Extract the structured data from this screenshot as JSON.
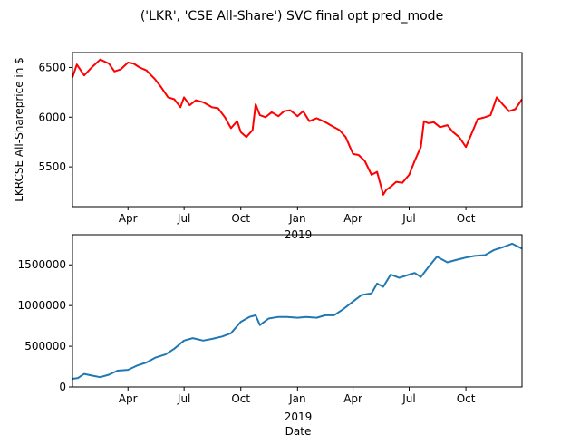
{
  "figure": {
    "title": "('LKR', 'CSE All-Share') SVC final opt pred_mode"
  },
  "chart_data": [
    {
      "type": "line",
      "title": "('LKR', 'CSE All-Share') SVC final opt pred_mode",
      "xlabel": "",
      "ylabel": "LKRCSE All-Shareprice in $",
      "x_range": [
        "2018-01-01",
        "2019-12-31"
      ],
      "ylim": [
        5100,
        6650
      ],
      "yticks": [
        5500,
        6000,
        6500
      ],
      "xticks": [
        {
          "date": "2018-04-01",
          "label": "Apr"
        },
        {
          "date": "2018-07-01",
          "label": "Jul"
        },
        {
          "date": "2018-10-01",
          "label": "Oct"
        },
        {
          "date": "2019-01-01",
          "label": "Jan"
        },
        {
          "date": "2019-04-01",
          "label": "Apr"
        },
        {
          "date": "2019-07-01",
          "label": "Jul"
        },
        {
          "date": "2019-10-01",
          "label": "Oct"
        }
      ],
      "year_label": "2019",
      "grid": false,
      "legend": "none",
      "color": "#ff0000",
      "series": [
        {
          "x": [
            "2018-01-01",
            "2018-01-08",
            "2018-01-20",
            "2018-02-01",
            "2018-02-15",
            "2018-03-01",
            "2018-03-10",
            "2018-03-20",
            "2018-04-01",
            "2018-04-10",
            "2018-04-20",
            "2018-05-01",
            "2018-05-15",
            "2018-05-25",
            "2018-06-05",
            "2018-06-15",
            "2018-06-25",
            "2018-07-01",
            "2018-07-10",
            "2018-07-20",
            "2018-08-01",
            "2018-08-15",
            "2018-08-25",
            "2018-09-05",
            "2018-09-15",
            "2018-09-25",
            "2018-10-01",
            "2018-10-10",
            "2018-10-20",
            "2018-10-25",
            "2018-11-01",
            "2018-11-10",
            "2018-11-20",
            "2018-12-01",
            "2018-12-10",
            "2018-12-20",
            "2019-01-01",
            "2019-01-10",
            "2019-01-20",
            "2019-02-01",
            "2019-02-15",
            "2019-03-01",
            "2019-03-10",
            "2019-03-20",
            "2019-04-01",
            "2019-04-10",
            "2019-04-20",
            "2019-05-01",
            "2019-05-10",
            "2019-05-20",
            "2019-05-25",
            "2019-06-01",
            "2019-06-10",
            "2019-06-20",
            "2019-07-01",
            "2019-07-10",
            "2019-07-20",
            "2019-07-25",
            "2019-08-01",
            "2019-08-10",
            "2019-08-20",
            "2019-09-01",
            "2019-09-10",
            "2019-09-20",
            "2019-10-01",
            "2019-10-10",
            "2019-10-20",
            "2019-11-01",
            "2019-11-10",
            "2019-11-20",
            "2019-12-01",
            "2019-12-10",
            "2019-12-20",
            "2019-12-31"
          ],
          "values": [
            6400,
            6530,
            6420,
            6500,
            6580,
            6540,
            6460,
            6480,
            6550,
            6540,
            6500,
            6470,
            6380,
            6300,
            6200,
            6180,
            6100,
            6200,
            6120,
            6170,
            6150,
            6100,
            6090,
            6000,
            5890,
            5960,
            5850,
            5800,
            5870,
            6130,
            6020,
            6000,
            6050,
            6010,
            6060,
            6070,
            6010,
            6060,
            5960,
            5990,
            5950,
            5900,
            5870,
            5800,
            5630,
            5620,
            5560,
            5420,
            5450,
            5220,
            5270,
            5300,
            5350,
            5340,
            5420,
            5560,
            5700,
            5960,
            5940,
            5950,
            5900,
            5920,
            5850,
            5800,
            5700,
            5830,
            5980,
            6000,
            6020,
            6200,
            6120,
            6060,
            6080,
            6180
          ]
        }
      ]
    },
    {
      "type": "line",
      "title": "",
      "xlabel": "Date",
      "ylabel": "",
      "x_range": [
        "2018-01-01",
        "2019-12-31"
      ],
      "ylim": [
        0,
        1870000
      ],
      "yticks": [
        0,
        500000,
        1000000,
        1500000
      ],
      "ytick_labels": [
        "0",
        "500000",
        "1000000",
        "1500000"
      ],
      "xticks": [
        {
          "date": "2018-04-01",
          "label": "Apr"
        },
        {
          "date": "2018-07-01",
          "label": "Jul"
        },
        {
          "date": "2018-10-01",
          "label": "Oct"
        },
        {
          "date": "2019-01-01",
          "label": "Jan"
        },
        {
          "date": "2019-04-01",
          "label": "Apr"
        },
        {
          "date": "2019-07-01",
          "label": "Jul"
        },
        {
          "date": "2019-10-01",
          "label": "Oct"
        }
      ],
      "year_label": "2019",
      "grid": false,
      "legend": "none",
      "color": "#1f77b4",
      "series": [
        {
          "x": [
            "2018-01-01",
            "2018-01-10",
            "2018-01-20",
            "2018-02-01",
            "2018-02-15",
            "2018-03-01",
            "2018-03-15",
            "2018-04-01",
            "2018-04-15",
            "2018-05-01",
            "2018-05-15",
            "2018-06-01",
            "2018-06-15",
            "2018-07-01",
            "2018-07-15",
            "2018-08-01",
            "2018-08-15",
            "2018-09-01",
            "2018-09-15",
            "2018-10-01",
            "2018-10-15",
            "2018-10-25",
            "2018-11-01",
            "2018-11-15",
            "2018-12-01",
            "2018-12-15",
            "2019-01-01",
            "2019-01-15",
            "2019-02-01",
            "2019-02-15",
            "2019-03-01",
            "2019-03-15",
            "2019-04-01",
            "2019-04-15",
            "2019-05-01",
            "2019-05-10",
            "2019-05-20",
            "2019-06-01",
            "2019-06-15",
            "2019-07-01",
            "2019-07-10",
            "2019-07-20",
            "2019-08-01",
            "2019-08-15",
            "2019-09-01",
            "2019-09-15",
            "2019-10-01",
            "2019-10-15",
            "2019-11-01",
            "2019-11-15",
            "2019-12-01",
            "2019-12-15",
            "2019-12-31"
          ],
          "values": [
            100000,
            110000,
            160000,
            140000,
            120000,
            150000,
            200000,
            210000,
            260000,
            300000,
            360000,
            400000,
            470000,
            570000,
            600000,
            570000,
            590000,
            620000,
            660000,
            800000,
            860000,
            880000,
            760000,
            840000,
            860000,
            860000,
            850000,
            860000,
            850000,
            880000,
            880000,
            950000,
            1050000,
            1130000,
            1150000,
            1270000,
            1230000,
            1380000,
            1340000,
            1380000,
            1400000,
            1350000,
            1470000,
            1600000,
            1530000,
            1560000,
            1590000,
            1610000,
            1620000,
            1680000,
            1720000,
            1760000,
            1700000
          ]
        }
      ]
    }
  ]
}
